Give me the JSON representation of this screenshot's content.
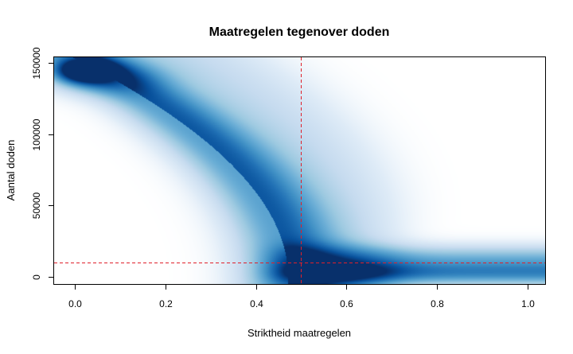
{
  "chart_data": {
    "type": "smoothScatter",
    "title": "Maatregelen tegenover doden",
    "xlabel": "Striktheid maatregelen",
    "ylabel": "Aantal doden",
    "xlim": [
      -0.046,
      1.039
    ],
    "ylim": [
      -5000,
      154000
    ],
    "x_ticks": [
      0.0,
      0.2,
      0.4,
      0.6,
      0.8,
      1.0
    ],
    "x_tick_labels": [
      "0.0",
      "0.2",
      "0.4",
      "0.6",
      "0.8",
      "1.0"
    ],
    "y_ticks": [
      0,
      50000,
      100000,
      150000
    ],
    "y_tick_labels": [
      "0",
      "50000",
      "100000",
      "150000"
    ],
    "reference_lines": [
      {
        "orientation": "vertical",
        "value": 0.5,
        "color": "#e0202a",
        "style": "dashed"
      },
      {
        "orientation": "horizontal",
        "value": 10000,
        "color": "#e0202a",
        "style": "dashed"
      }
    ],
    "density_peaks": [
      {
        "x": 0.02,
        "y": 145000
      },
      {
        "x": 0.62,
        "y": 3000
      }
    ],
    "color_ramp": [
      "#F7FBFF",
      "#DEEBF7",
      "#C6DBEF",
      "#9ECAE1",
      "#6BAED6",
      "#4292C6",
      "#2171B5",
      "#08519C",
      "#08306B"
    ],
    "grid": false
  }
}
